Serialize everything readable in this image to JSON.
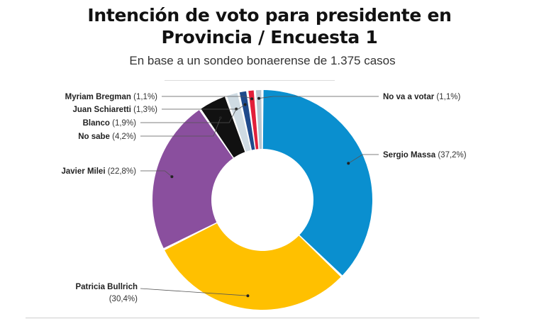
{
  "header": {
    "title_line1": "Intención de voto para presidente en",
    "title_line2": "Provincia / Encuesta 1",
    "subtitle": "En base a un sondeo bonaerense de 1.375 casos"
  },
  "chart_data": {
    "type": "pie",
    "variant": "donut",
    "title": "Intención de voto para presidente en Provincia / Encuesta 1",
    "subtitle": "En base a un sondeo bonaerense de 1.375 casos",
    "unit": "%",
    "slices": [
      {
        "name": "Sergio Massa",
        "value": 37.2,
        "label": "(37,2%)",
        "color": "#0a8fcf"
      },
      {
        "name": "Patricia Bullrich",
        "value": 30.4,
        "label": "(30,4%)",
        "color": "#ffc000"
      },
      {
        "name": "Javier Milei",
        "value": 22.8,
        "label": "(22,8%)",
        "color": "#8a4f9e"
      },
      {
        "name": "No sabe",
        "value": 4.2,
        "label": "(4,2%)",
        "color": "#111111"
      },
      {
        "name": "Blanco",
        "value": 1.9,
        "label": "(1,9%)",
        "color": "#cfdbe3"
      },
      {
        "name": "Juan Schiaretti",
        "value": 1.3,
        "label": "(1,3%)",
        "color": "#1f4a8c"
      },
      {
        "name": "Myriam Bregman",
        "value": 1.1,
        "label": "(1,1%)",
        "color": "#e21f3a"
      },
      {
        "name": "No va a votar",
        "value": 1.1,
        "label": "(1,1%)",
        "color": "#b8c6d1"
      }
    ]
  }
}
